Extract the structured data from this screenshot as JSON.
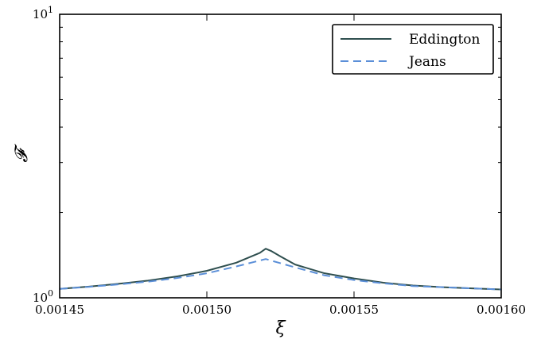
{
  "chart_data": {
    "type": "line",
    "title": "",
    "xlabel": "ξ",
    "ylabel": "𝓕",
    "xlim": [
      0.00145,
      0.0016
    ],
    "ylim": [
      1,
      10
    ],
    "yscale": "log",
    "grid": false,
    "legend_position": "top-right",
    "x_ticks": [
      {
        "value": 0.00145,
        "label": "0.00145"
      },
      {
        "value": 0.0015,
        "label": "0.00150"
      },
      {
        "value": 0.00155,
        "label": "0.00155"
      },
      {
        "value": 0.0016,
        "label": "0.00160"
      }
    ],
    "y_ticks": [
      {
        "value": 1,
        "base": "10",
        "exp": "0"
      },
      {
        "value": 10,
        "base": "10",
        "exp": "1"
      }
    ],
    "series": [
      {
        "name": "Eddington",
        "color": "#2f4f4f",
        "dash": "solid",
        "points": [
          [
            0.00145,
            1.075
          ],
          [
            0.00146,
            1.095
          ],
          [
            0.00147,
            1.12
          ],
          [
            0.00148,
            1.15
          ],
          [
            0.00149,
            1.19
          ],
          [
            0.0015,
            1.245
          ],
          [
            0.00151,
            1.33
          ],
          [
            0.001518,
            1.44
          ],
          [
            0.00152,
            1.49
          ],
          [
            0.001522,
            1.46
          ],
          [
            0.001525,
            1.4
          ],
          [
            0.00153,
            1.31
          ],
          [
            0.00154,
            1.22
          ],
          [
            0.00155,
            1.17
          ],
          [
            0.00156,
            1.13
          ],
          [
            0.00157,
            1.105
          ],
          [
            0.00158,
            1.09
          ],
          [
            0.00159,
            1.08
          ],
          [
            0.0016,
            1.07
          ]
        ]
      },
      {
        "name": "Jeans",
        "color": "#5b8fd8",
        "dash": "dashed",
        "points": [
          [
            0.00145,
            1.075
          ],
          [
            0.00146,
            1.093
          ],
          [
            0.00147,
            1.115
          ],
          [
            0.00148,
            1.14
          ],
          [
            0.00149,
            1.175
          ],
          [
            0.0015,
            1.22
          ],
          [
            0.00151,
            1.29
          ],
          [
            0.00152,
            1.37
          ],
          [
            0.00153,
            1.28
          ],
          [
            0.00154,
            1.2
          ],
          [
            0.00155,
            1.155
          ],
          [
            0.00156,
            1.125
          ],
          [
            0.00157,
            1.1
          ],
          [
            0.00158,
            1.09
          ],
          [
            0.00159,
            1.08
          ],
          [
            0.0016,
            1.07
          ]
        ]
      }
    ]
  }
}
